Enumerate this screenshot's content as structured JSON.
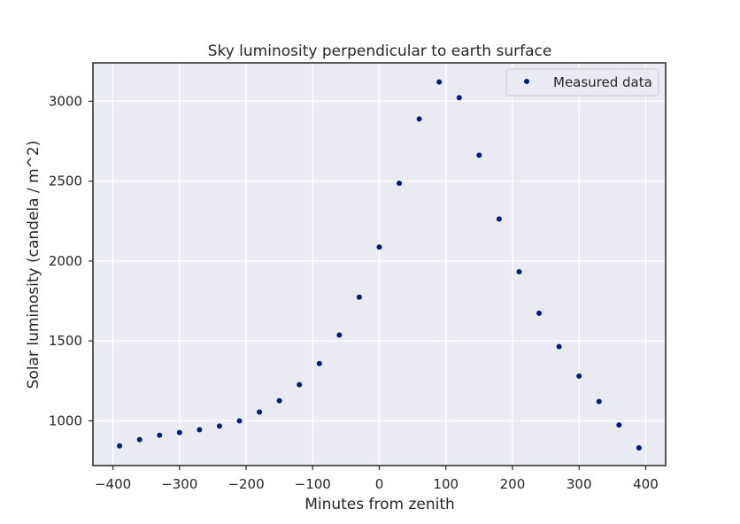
{
  "chart_data": {
    "type": "scatter",
    "title": "Sky luminosity perpendicular to earth surface",
    "xlabel": "Minutes from zenith",
    "ylabel": "Solar luminosity (candela / m^2)",
    "xlim": [
      -430,
      430
    ],
    "ylim": [
      720,
      3240
    ],
    "xticks": [
      -400,
      -300,
      -200,
      -100,
      0,
      100,
      200,
      300,
      400
    ],
    "xtick_labels": [
      "−400",
      "−300",
      "−200",
      "−100",
      "0",
      "100",
      "200",
      "300",
      "400"
    ],
    "yticks": [
      1000,
      1500,
      2000,
      2500,
      3000
    ],
    "ytick_labels": [
      "1000",
      "1500",
      "2000",
      "2500",
      "3000"
    ],
    "grid": true,
    "legend_position": "top-right",
    "marker_color": "#001c7f",
    "background_color": "#eaeaf2",
    "series": [
      {
        "name": "Measured data",
        "x": [
          -390,
          -360,
          -330,
          -300,
          -270,
          -240,
          -210,
          -180,
          -150,
          -120,
          -90,
          -60,
          -30,
          0,
          30,
          60,
          90,
          120,
          150,
          180,
          210,
          240,
          270,
          300,
          330,
          360,
          390
        ],
        "y": [
          843,
          883,
          910,
          927,
          944,
          967,
          1000,
          1055,
          1126,
          1226,
          1358,
          1537,
          1774,
          2087,
          2487,
          2889,
          3120,
          3022,
          2662,
          2263,
          1933,
          1673,
          1464,
          1280,
          1121,
          974,
          831
        ]
      }
    ]
  }
}
